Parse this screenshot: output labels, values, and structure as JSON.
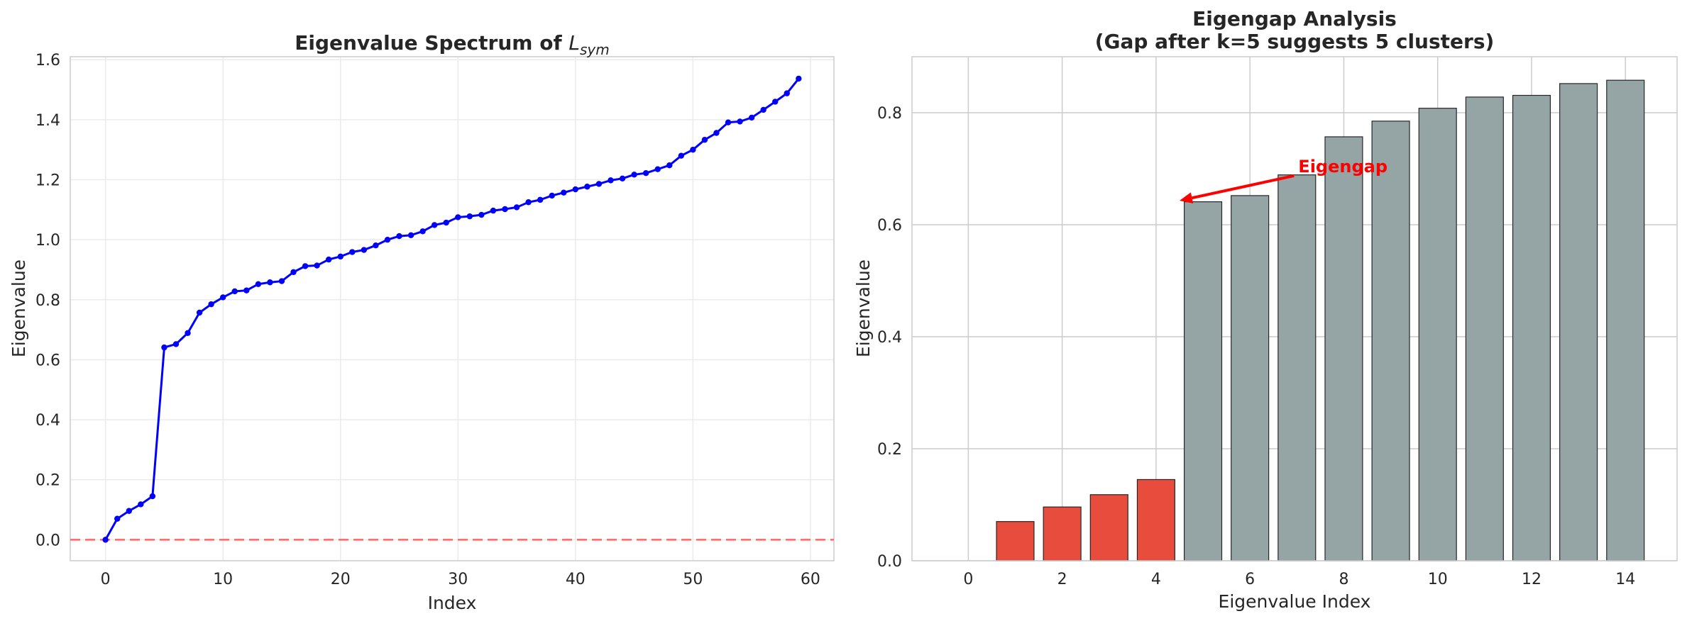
{
  "chart_data": [
    {
      "type": "line",
      "title_prefix": "Eigenvalue Spectrum of ",
      "title_math_base": "L",
      "title_math_sub": "sym",
      "xlabel": "Index",
      "ylabel": "Eigenvalue",
      "xlim": [
        -3,
        62
      ],
      "ylim": [
        -0.07,
        1.61
      ],
      "xticks": [
        0,
        10,
        20,
        30,
        40,
        50,
        60
      ],
      "yticks": [
        0.0,
        0.2,
        0.4,
        0.6,
        0.8,
        1.0,
        1.2,
        1.4,
        1.6
      ],
      "grid": true,
      "line_color": "#0000ff",
      "reference_line": {
        "y": 0.0,
        "color": "#ff6666",
        "style": "dashed"
      },
      "x": [
        0,
        1,
        2,
        3,
        4,
        5,
        6,
        7,
        8,
        9,
        10,
        11,
        12,
        13,
        14,
        15,
        16,
        17,
        18,
        19,
        20,
        21,
        22,
        23,
        24,
        25,
        26,
        27,
        28,
        29,
        30,
        31,
        32,
        33,
        34,
        35,
        36,
        37,
        38,
        39,
        40,
        41,
        42,
        43,
        44,
        45,
        46,
        47,
        48,
        49,
        50,
        51,
        52,
        53,
        54,
        55,
        56,
        57,
        58,
        59
      ],
      "y": [
        0.0,
        0.07,
        0.096,
        0.118,
        0.145,
        0.641,
        0.652,
        0.689,
        0.757,
        0.785,
        0.808,
        0.828,
        0.831,
        0.852,
        0.858,
        0.862,
        0.892,
        0.912,
        0.914,
        0.934,
        0.944,
        0.959,
        0.966,
        0.981,
        1.0,
        1.012,
        1.015,
        1.028,
        1.049,
        1.057,
        1.075,
        1.078,
        1.083,
        1.097,
        1.102,
        1.108,
        1.125,
        1.133,
        1.147,
        1.157,
        1.168,
        1.177,
        1.186,
        1.198,
        1.204,
        1.217,
        1.222,
        1.235,
        1.248,
        1.28,
        1.3,
        1.333,
        1.356,
        1.391,
        1.394,
        1.407,
        1.433,
        1.46,
        1.488,
        1.537
      ]
    },
    {
      "type": "bar",
      "title_line1": "Eigengap Analysis",
      "title_line2": "(Gap after k=5 suggests 5 clusters)",
      "xlabel": "Eigenvalue Index",
      "ylabel": "Eigenvalue",
      "xlim": [
        -1.2,
        15.1
      ],
      "ylim": [
        0,
        0.9
      ],
      "xticks": [
        0,
        2,
        4,
        6,
        8,
        10,
        12,
        14
      ],
      "yticks": [
        0.0,
        0.2,
        0.4,
        0.6,
        0.8
      ],
      "grid": true,
      "categories": [
        0,
        1,
        2,
        3,
        4,
        5,
        6,
        7,
        8,
        9,
        10,
        11,
        12,
        13,
        14
      ],
      "values": [
        0.0,
        0.07,
        0.096,
        0.118,
        0.145,
        0.641,
        0.652,
        0.689,
        0.757,
        0.785,
        0.808,
        0.828,
        0.831,
        0.852,
        0.858
      ],
      "highlight_count": 5,
      "highlight_color": "#e74c3c",
      "base_color": "#95a5a6",
      "annotation": {
        "text": "Eigengap",
        "text_x": 7.0,
        "text_y": 0.69,
        "arrow_x": 4.5,
        "arrow_y": 0.643,
        "color": "#ff0000"
      }
    }
  ]
}
